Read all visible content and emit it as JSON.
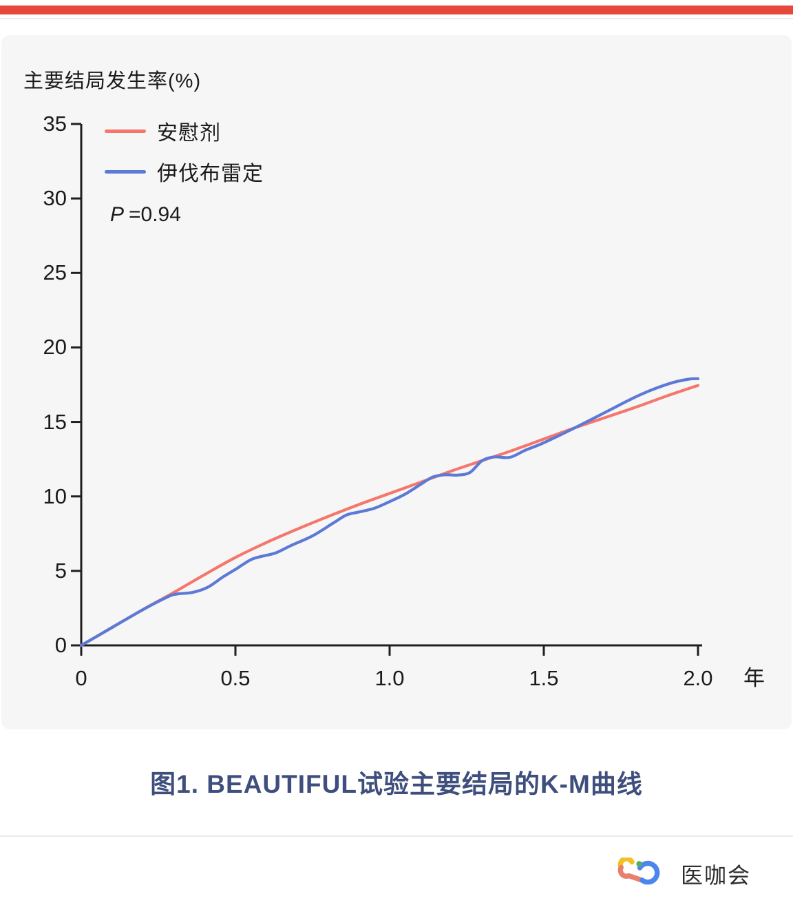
{
  "page": {
    "top_bar_color": "#e6493c",
    "panel_bg": "#f6f6f7",
    "divider_color": "#ebebed"
  },
  "caption": "图1. BEAUTIFUL试验主要结局的K-M曲线",
  "footer": {
    "brand": "医咖会",
    "logo_icon": "infinity-link-logo",
    "logo_colors": {
      "yellow": "#f3c124",
      "salmon": "#e8806f",
      "blue": "#4b86ec",
      "green": "#52b15a"
    }
  },
  "chart_data": {
    "type": "line",
    "title": "主要结局发生率(%)",
    "p_italic": "P",
    "p_value": "=0.94",
    "xlabel": "年",
    "ylabel": "",
    "xlim": [
      0,
      2.0
    ],
    "ylim": [
      0,
      35
    ],
    "grid": false,
    "legend_position": "top-left-inside",
    "axis_color": "#1f1f1f",
    "x_ticks": [
      {
        "value": 0,
        "label": "0"
      },
      {
        "value": 0.5,
        "label": "0.5"
      },
      {
        "value": 1.0,
        "label": "1.0"
      },
      {
        "value": 1.5,
        "label": "1.5"
      },
      {
        "value": 2.0,
        "label": "2.0"
      }
    ],
    "y_ticks": [
      {
        "value": 0,
        "label": "0"
      },
      {
        "value": 5,
        "label": "5"
      },
      {
        "value": 10,
        "label": "10"
      },
      {
        "value": 15,
        "label": "15"
      },
      {
        "value": 20,
        "label": "20"
      },
      {
        "value": 25,
        "label": "25"
      },
      {
        "value": 30,
        "label": "30"
      },
      {
        "value": 35,
        "label": "35"
      }
    ],
    "series": [
      {
        "name": "安慰剂",
        "color": "#f5776c",
        "points": [
          [
            0,
            0
          ],
          [
            0.1,
            1.2
          ],
          [
            0.2,
            2.4
          ],
          [
            0.3,
            3.55
          ],
          [
            0.4,
            4.75
          ],
          [
            0.5,
            5.9
          ],
          [
            0.6,
            6.9
          ],
          [
            0.7,
            7.8
          ],
          [
            0.8,
            8.65
          ],
          [
            0.9,
            9.45
          ],
          [
            1.0,
            10.2
          ],
          [
            1.1,
            10.95
          ],
          [
            1.2,
            11.7
          ],
          [
            1.3,
            12.4
          ],
          [
            1.4,
            13.1
          ],
          [
            1.5,
            13.85
          ],
          [
            1.6,
            14.6
          ],
          [
            1.7,
            15.3
          ],
          [
            1.8,
            16.0
          ],
          [
            1.9,
            16.75
          ],
          [
            2.0,
            17.45
          ]
        ]
      },
      {
        "name": "伊伐布雷定",
        "color": "#5c79d6",
        "points": [
          [
            0,
            0
          ],
          [
            0.1,
            1.2
          ],
          [
            0.2,
            2.4
          ],
          [
            0.28,
            3.25
          ],
          [
            0.31,
            3.45
          ],
          [
            0.36,
            3.55
          ],
          [
            0.41,
            3.9
          ],
          [
            0.46,
            4.6
          ],
          [
            0.5,
            5.1
          ],
          [
            0.55,
            5.75
          ],
          [
            0.59,
            6.0
          ],
          [
            0.63,
            6.2
          ],
          [
            0.68,
            6.7
          ],
          [
            0.75,
            7.35
          ],
          [
            0.82,
            8.25
          ],
          [
            0.86,
            8.75
          ],
          [
            0.9,
            8.95
          ],
          [
            0.95,
            9.2
          ],
          [
            1.0,
            9.65
          ],
          [
            1.05,
            10.15
          ],
          [
            1.1,
            10.8
          ],
          [
            1.14,
            11.3
          ],
          [
            1.18,
            11.45
          ],
          [
            1.22,
            11.43
          ],
          [
            1.26,
            11.6
          ],
          [
            1.3,
            12.4
          ],
          [
            1.34,
            12.65
          ],
          [
            1.39,
            12.62
          ],
          [
            1.44,
            13.1
          ],
          [
            1.5,
            13.6
          ],
          [
            1.6,
            14.6
          ],
          [
            1.7,
            15.65
          ],
          [
            1.78,
            16.5
          ],
          [
            1.85,
            17.15
          ],
          [
            1.92,
            17.65
          ],
          [
            1.97,
            17.87
          ],
          [
            2.0,
            17.9
          ]
        ]
      }
    ]
  }
}
